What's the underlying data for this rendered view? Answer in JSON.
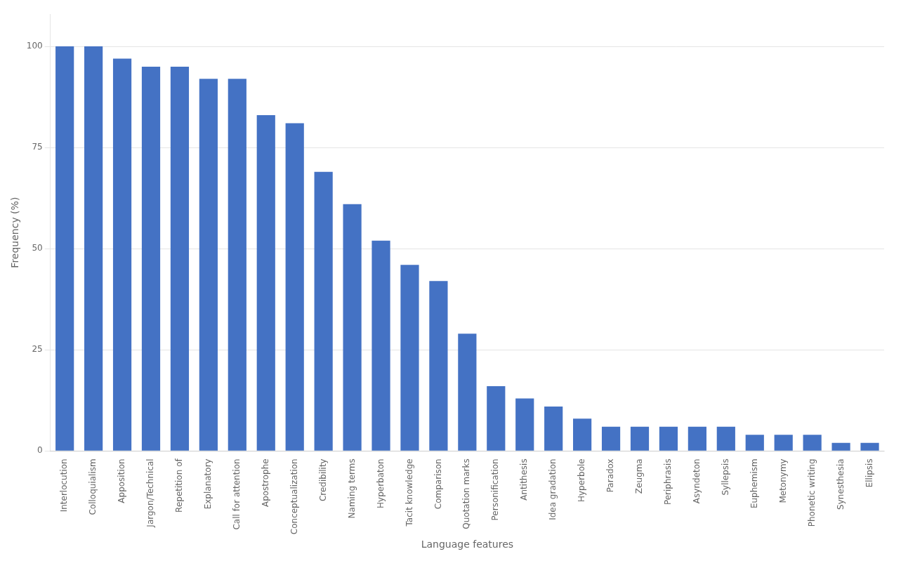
{
  "chart_data": {
    "type": "bar",
    "categories": [
      "Interlocution",
      "Colloquialism",
      "Apposition",
      "Jargon/Technical",
      "Repetition of",
      "Explanatory",
      "Call for attention",
      "Apostrophe",
      "Conceptualization",
      "Credibility",
      "Naming terms",
      "Hyperbaton",
      "Tacit knowledge",
      "Comparison",
      "Quotation marks",
      "Personification",
      "Antithesis",
      "Idea gradation",
      "Hyperbole",
      "Paradox",
      "Zeugma",
      "Periphrasis",
      "Asyndeton",
      "Syllepsis",
      "Euphemism",
      "Metonymy",
      "Phonetic writing",
      "Synesthesia",
      "Ellipsis"
    ],
    "values": [
      100,
      100,
      97,
      95,
      95,
      92,
      92,
      83,
      81,
      69,
      61,
      52,
      46,
      42,
      29,
      16,
      13,
      11,
      8,
      6,
      6,
      6,
      6,
      6,
      4,
      4,
      4,
      2,
      2
    ],
    "color": "#4472c4",
    "xlabel": "Language features",
    "ylabel": "Frequency (%)",
    "ylim": [
      0,
      108
    ],
    "yticks": [
      0,
      25,
      50,
      75,
      100
    ],
    "grid": true
  }
}
